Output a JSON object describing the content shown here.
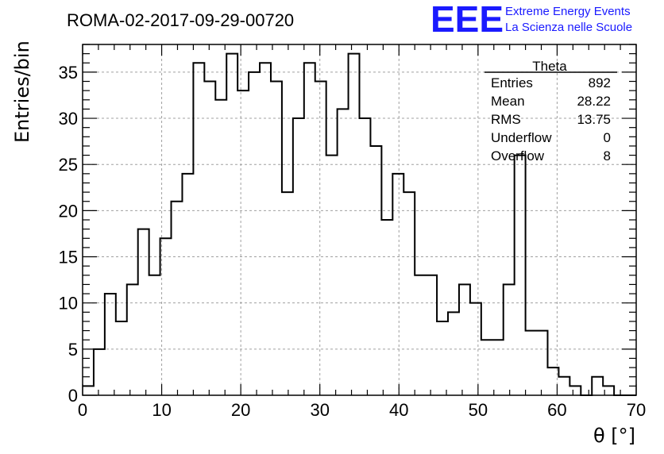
{
  "title": "ROMA-02-2017-09-29-00720",
  "logo": {
    "mark": "EEE",
    "line1": "Extreme Energy Events",
    "line2": "La Scienza nelle Scuole",
    "color": "#1a1aff"
  },
  "stats": {
    "name": "Theta",
    "rows": [
      {
        "label": "Entries",
        "value": "892"
      },
      {
        "label": "Mean",
        "value": "28.22"
      },
      {
        "label": "RMS",
        "value": "13.75"
      },
      {
        "label": "Underflow",
        "value": "0"
      },
      {
        "label": "Overflow",
        "value": "8"
      }
    ]
  },
  "chart_data": {
    "type": "bar",
    "histogram": true,
    "xlabel": "θ [°]",
    "ylabel": "Entries/bin",
    "xlim": [
      0,
      70
    ],
    "ylim": [
      0,
      38
    ],
    "grid": true,
    "bin_width": 1.4,
    "x_ticks": [
      0,
      10,
      20,
      30,
      40,
      50,
      60,
      70
    ],
    "y_ticks": [
      0,
      5,
      10,
      15,
      20,
      25,
      30,
      35
    ],
    "bin_edges_start": 0,
    "values": [
      1,
      5,
      11,
      8,
      12,
      18,
      13,
      17,
      21,
      24,
      36,
      34,
      32,
      37,
      33,
      35,
      36,
      34,
      22,
      30,
      36,
      34,
      26,
      31,
      37,
      30,
      27,
      19,
      24,
      22,
      13,
      13,
      8,
      9,
      12,
      10,
      6,
      6,
      12,
      26,
      7,
      7,
      3,
      2,
      1,
      0,
      2,
      1,
      0,
      0
    ]
  }
}
